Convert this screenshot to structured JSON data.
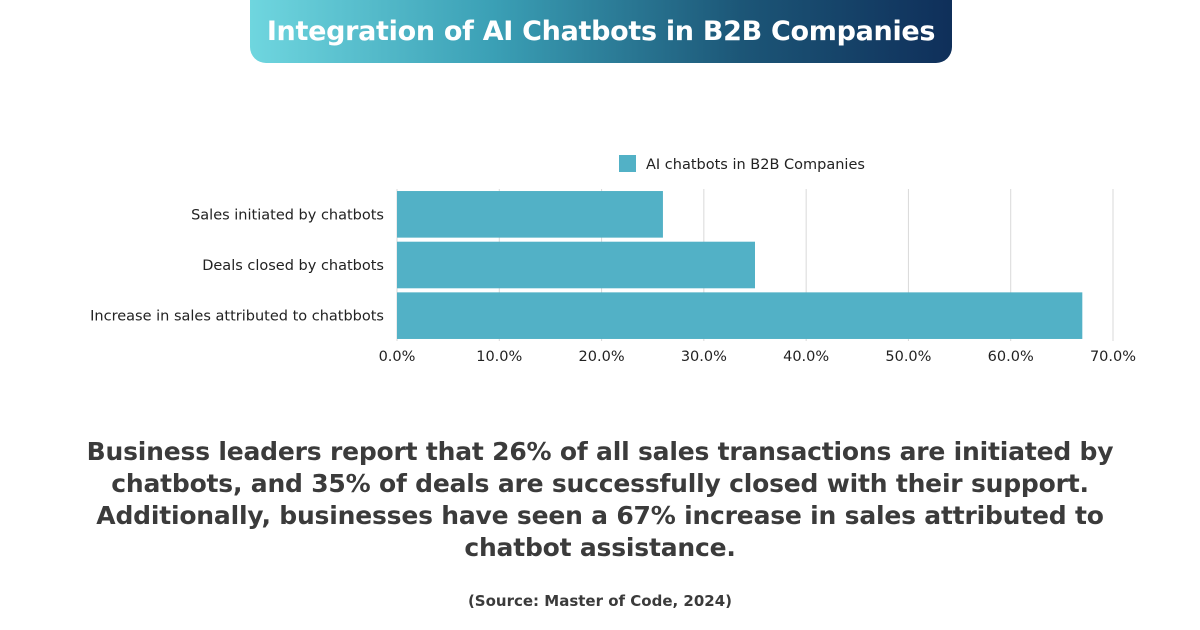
{
  "header": {
    "title": "Integration of AI Chatbots in B2B Companies"
  },
  "chart_data": {
    "type": "bar",
    "orientation": "horizontal",
    "categories": [
      "Sales initiated by chatbots",
      "Deals closed by chatbots",
      "Increase in sales attributed to chatbbots"
    ],
    "series": [
      {
        "name": "AI chatbots in B2B Companies",
        "values": [
          26,
          35,
          67
        ]
      }
    ],
    "xlim": [
      0,
      70
    ],
    "x_ticks": [
      "0.0%",
      "10.0%",
      "20.0%",
      "30.0%",
      "40.0%",
      "50.0%",
      "60.0%",
      "70.0%"
    ],
    "grid": true,
    "legend_position": "top-center",
    "bar_color": "#52b1c6"
  },
  "body": {
    "summary": "Business leaders report that 26% of all sales transactions are initiated by chatbots, and 35% of deals are successfully closed with their support. Additionally, businesses have seen a 67% increase in sales attributed to chatbot assistance.",
    "source": "(Source: Master of Code, 2024)"
  }
}
